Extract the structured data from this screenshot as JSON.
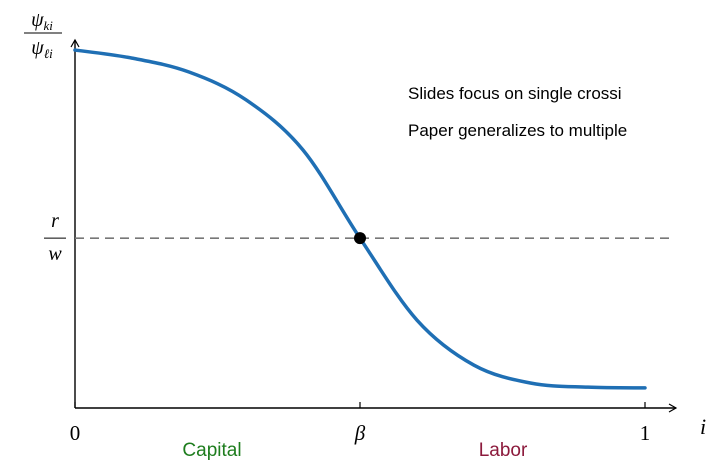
{
  "chart_data": {
    "type": "line",
    "y_label": {
      "numerator": {
        "base": "ψ",
        "sub": "ki"
      },
      "denominator": {
        "base": "ψ",
        "sub": "ℓi"
      }
    },
    "x_label": "i",
    "annotations": [
      "Slides focus on single crossi",
      "Paper generalizes to multiple"
    ],
    "regions": [
      {
        "label": "Capital",
        "color": "#1e7d1e"
      },
      {
        "label": "Labor",
        "color": "#8c1a3c"
      }
    ],
    "x": [
      0,
      0.1,
      0.2,
      0.3,
      0.4,
      0.5,
      0.6,
      0.7,
      0.8,
      0.9,
      1
    ],
    "series": [
      {
        "color": "#1f6fb4",
        "values": [
          0.978,
          0.956,
          0.918,
          0.842,
          0.705,
          0.464,
          0.24,
          0.117,
          0.068,
          0.057,
          0.055
        ]
      }
    ],
    "xlim": [
      0,
      1
    ],
    "ylim": [
      0,
      1
    ],
    "xticks": [
      0,
      {
        "value": 0.5,
        "label": "β"
      },
      1
    ],
    "yticks": [
      {
        "value": 0.464,
        "label": {
          "numerator": "r",
          "denominator": "w"
        }
      }
    ],
    "highlight_index": 5
  }
}
